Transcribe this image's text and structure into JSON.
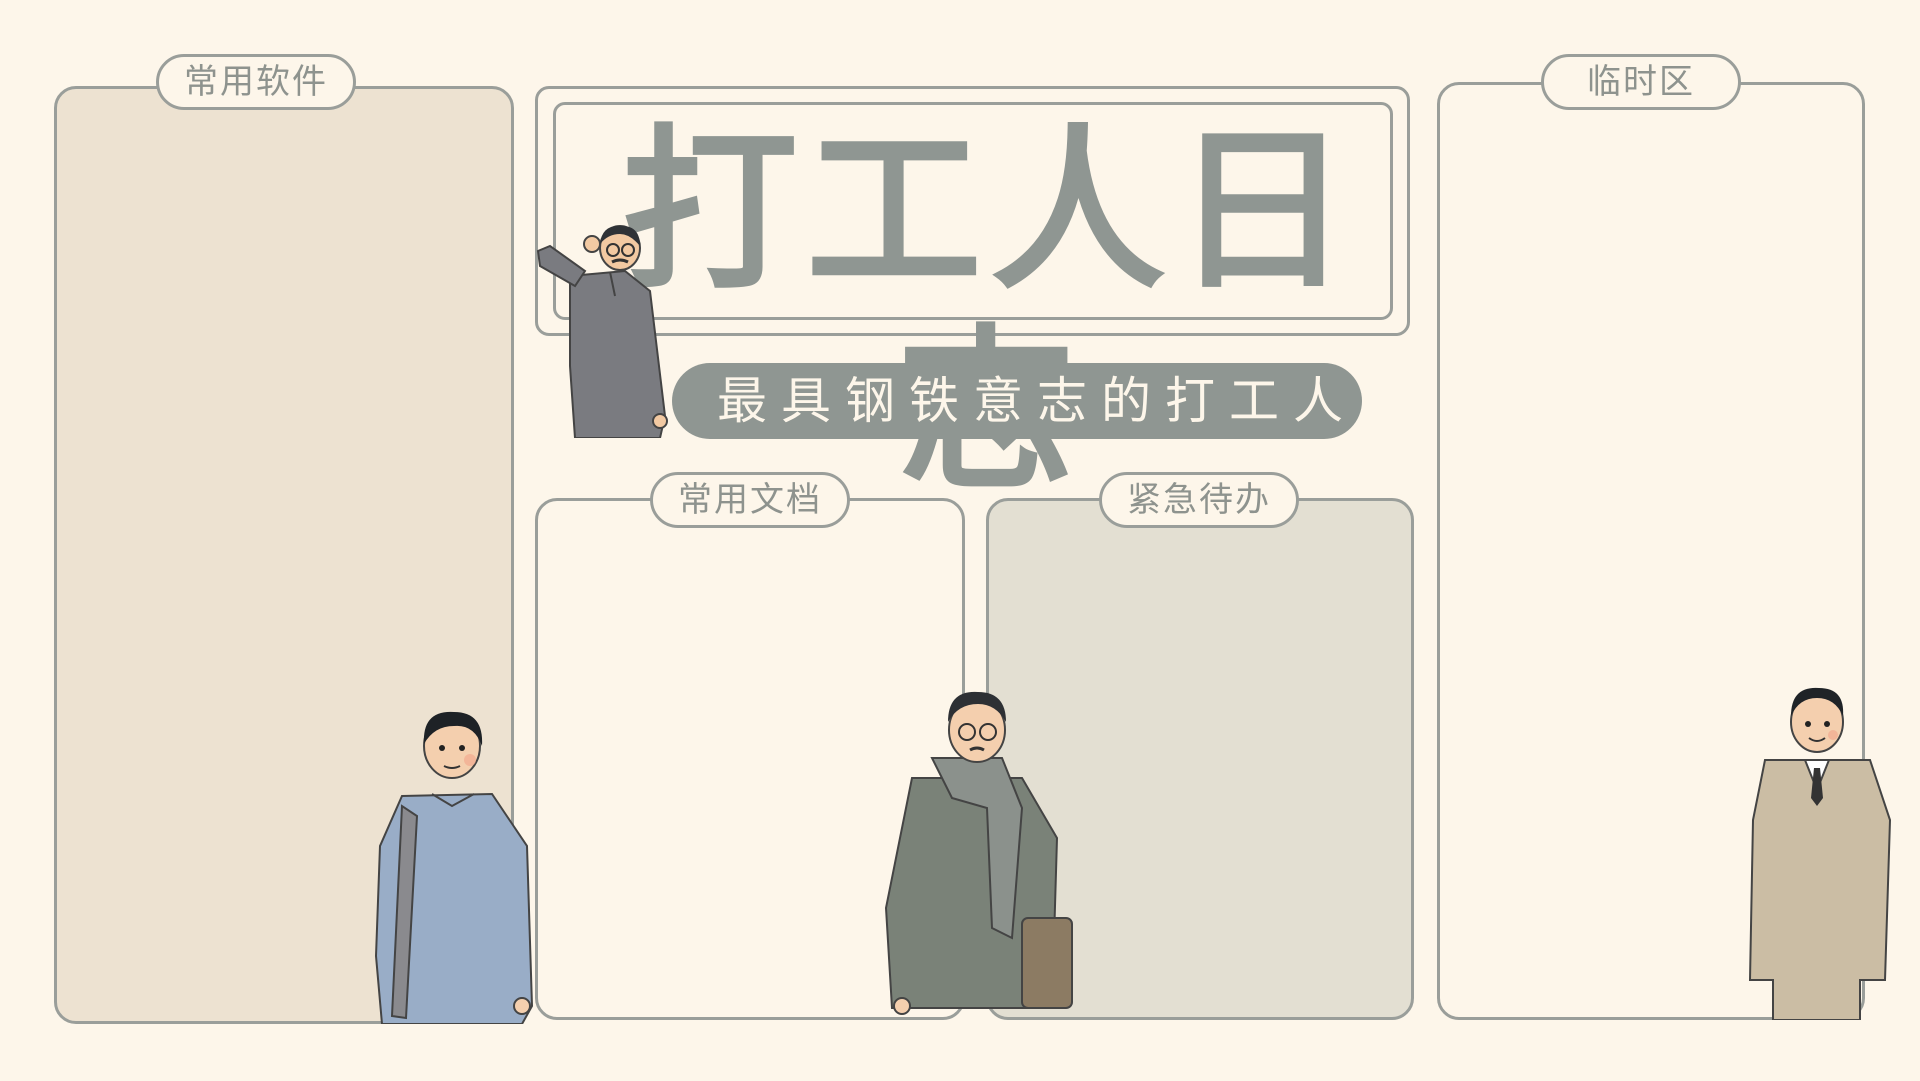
{
  "title": "打工人日志",
  "subtitle": "最具钢铁意志的打工人",
  "sections": {
    "software": "常用软件",
    "temp": "临时区",
    "docs": "常用文档",
    "todo": "紧急待办"
  },
  "colors": {
    "background": "#fdf6ea",
    "border": "#9a9e9a",
    "title_text": "#8f9692",
    "software_fill": "#ede2d1",
    "todo_fill": "#e3dfd2"
  },
  "illustrations": [
    "saluting-man-gray-robe",
    "young-man-blue-robe",
    "man-with-scarf-and-bag",
    "man-in-suit"
  ]
}
